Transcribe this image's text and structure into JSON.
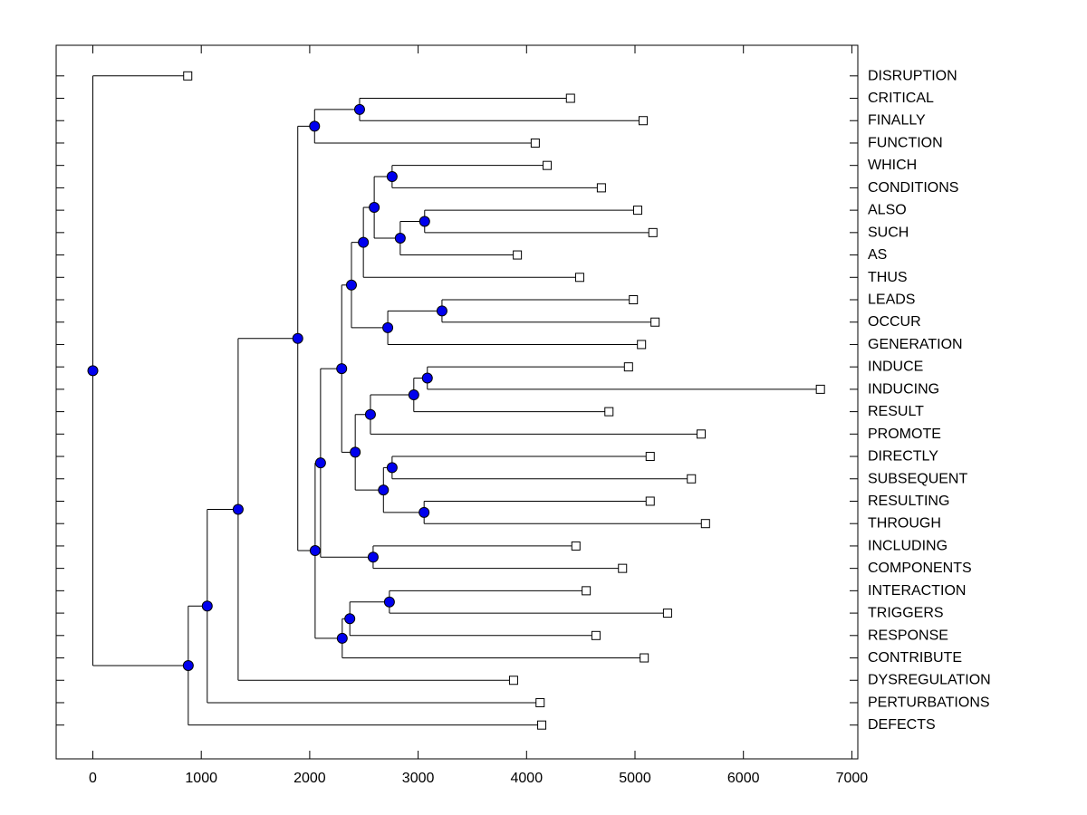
{
  "figure": {
    "background": "#FFFFFF",
    "title": "",
    "xlabel": "",
    "ylabel": ""
  },
  "chart_data": {
    "type": "dendrogram",
    "subtype": "phylogenetic-tree",
    "orientation": "left-to-right",
    "leaf_labels_position": "right",
    "grid": false,
    "xlim": [
      -340,
      7055
    ],
    "xticks": [
      0,
      1000,
      2000,
      3000,
      4000,
      5000,
      6000,
      7000
    ],
    "xtick_labels": [
      "0",
      "1000",
      "2000",
      "3000",
      "4000",
      "5000",
      "6000",
      "7000"
    ],
    "leaves": [
      {
        "label": "DISRUPTION",
        "distance": 875
      },
      {
        "label": "CRITICAL",
        "distance": 4405
      },
      {
        "label": "FINALLY",
        "distance": 5075
      },
      {
        "label": "FUNCTION",
        "distance": 4080
      },
      {
        "label": "WHICH",
        "distance": 4190
      },
      {
        "label": "CONDITIONS",
        "distance": 4690
      },
      {
        "label": "ALSO",
        "distance": 5025
      },
      {
        "label": "SUCH",
        "distance": 5165
      },
      {
        "label": "AS",
        "distance": 3915
      },
      {
        "label": "THUS",
        "distance": 4490
      },
      {
        "label": "LEADS",
        "distance": 4985
      },
      {
        "label": "OCCUR",
        "distance": 5185
      },
      {
        "label": "GENERATION",
        "distance": 5060
      },
      {
        "label": "INDUCE",
        "distance": 4940
      },
      {
        "label": "INDUCING",
        "distance": 6710
      },
      {
        "label": "RESULT",
        "distance": 4760
      },
      {
        "label": "PROMOTE",
        "distance": 5610
      },
      {
        "label": "DIRECTLY",
        "distance": 5140
      },
      {
        "label": "SUBSEQUENT",
        "distance": 5520
      },
      {
        "label": "RESULTING",
        "distance": 5140
      },
      {
        "label": "THROUGH",
        "distance": 5650
      },
      {
        "label": "INCLUDING",
        "distance": 4455
      },
      {
        "label": "COMPONENTS",
        "distance": 4885
      },
      {
        "label": "INTERACTION",
        "distance": 4550
      },
      {
        "label": "TRIGGERS",
        "distance": 5300
      },
      {
        "label": "RESPONSE",
        "distance": 4640
      },
      {
        "label": "CONTRIBUTE",
        "distance": 5085
      },
      {
        "label": "DYSREGULATION",
        "distance": 3880
      },
      {
        "label": "PERTURBATIONS",
        "distance": 4125
      },
      {
        "label": "DEFECTS",
        "distance": 4140
      }
    ],
    "internal_nodes": [
      {
        "id": "branch-critical-finally",
        "children": [
          "CRITICAL",
          "FINALLY"
        ],
        "distance": 2460
      },
      {
        "id": "branch-critical-function",
        "children": [
          "branch-critical-finally",
          "FUNCTION"
        ],
        "distance": 2045
      },
      {
        "id": "branch-which-conditions",
        "children": [
          "WHICH",
          "CONDITIONS"
        ],
        "distance": 2760
      },
      {
        "id": "branch-also-such",
        "children": [
          "ALSO",
          "SUCH"
        ],
        "distance": 3060
      },
      {
        "id": "branch-alsosuch-as",
        "children": [
          "branch-also-such",
          "AS"
        ],
        "distance": 2835
      },
      {
        "id": "branch-which-as",
        "children": [
          "branch-which-conditions",
          "branch-alsosuch-as"
        ],
        "distance": 2595
      },
      {
        "id": "branch-which-thus",
        "children": [
          "branch-which-as",
          "THUS"
        ],
        "distance": 2495
      },
      {
        "id": "branch-leads-occur",
        "children": [
          "LEADS",
          "OCCUR"
        ],
        "distance": 3220
      },
      {
        "id": "branch-leads-generation",
        "children": [
          "branch-leads-occur",
          "GENERATION"
        ],
        "distance": 2720
      },
      {
        "id": "branch-upper-mid",
        "children": [
          "branch-which-thus",
          "branch-leads-generation"
        ],
        "distance": 2385
      },
      {
        "id": "branch-induce-inducing",
        "children": [
          "INDUCE",
          "INDUCING"
        ],
        "distance": 3085
      },
      {
        "id": "branch-induce-result",
        "children": [
          "branch-induce-inducing",
          "RESULT"
        ],
        "distance": 2960
      },
      {
        "id": "branch-induce-promote",
        "children": [
          "branch-induce-result",
          "PROMOTE"
        ],
        "distance": 2560
      },
      {
        "id": "branch-directly-subsequent",
        "children": [
          "DIRECTLY",
          "SUBSEQUENT"
        ],
        "distance": 2760
      },
      {
        "id": "branch-resulting-through",
        "children": [
          "RESULTING",
          "THROUGH"
        ],
        "distance": 3055
      },
      {
        "id": "branch-directly-through",
        "children": [
          "branch-directly-subsequent",
          "branch-resulting-through"
        ],
        "distance": 2680
      },
      {
        "id": "branch-induce-through",
        "children": [
          "branch-induce-promote",
          "branch-directly-through"
        ],
        "distance": 2420
      },
      {
        "id": "branch-which-through",
        "children": [
          "branch-upper-mid",
          "branch-induce-through"
        ],
        "distance": 2295
      },
      {
        "id": "branch-including-components",
        "children": [
          "INCLUDING",
          "COMPONENTS"
        ],
        "distance": 2585
      },
      {
        "id": "branch-which-components",
        "children": [
          "branch-which-through",
          "branch-including-components"
        ],
        "distance": 2100
      },
      {
        "id": "branch-interaction-triggers",
        "children": [
          "INTERACTION",
          "TRIGGERS"
        ],
        "distance": 2735
      },
      {
        "id": "branch-interaction-response",
        "children": [
          "branch-interaction-triggers",
          "RESPONSE"
        ],
        "distance": 2370
      },
      {
        "id": "branch-interaction-contribute",
        "children": [
          "branch-interaction-response",
          "CONTRIBUTE"
        ],
        "distance": 2300
      },
      {
        "id": "branch-core",
        "children": [
          "branch-which-components",
          "branch-interaction-contribute"
        ],
        "distance": 2050
      },
      {
        "id": "branch-critical-core",
        "children": [
          "branch-critical-function",
          "branch-core"
        ],
        "distance": 1890
      },
      {
        "id": "branch-dysregulation",
        "children": [
          "branch-critical-core",
          "DYSREGULATION"
        ],
        "distance": 1340
      },
      {
        "id": "branch-perturbations",
        "children": [
          "branch-dysregulation",
          "PERTURBATIONS"
        ],
        "distance": 1055
      },
      {
        "id": "branch-defects",
        "children": [
          "branch-perturbations",
          "DEFECTS"
        ],
        "distance": 880
      },
      {
        "id": "root",
        "children": [
          "DISRUPTION",
          "branch-defects"
        ],
        "distance": 0
      }
    ],
    "root_id": "root",
    "markers": {
      "internal": "filled-circle",
      "leaf": "open-square"
    },
    "colors": {
      "branch_line": "#000000",
      "internal_node_fill": "#0000EE",
      "internal_node_edge": "#000000",
      "leaf_marker_fill": "#FFFFFF",
      "leaf_marker_edge": "#000000",
      "axis": "#000000",
      "text": "#000000"
    }
  }
}
